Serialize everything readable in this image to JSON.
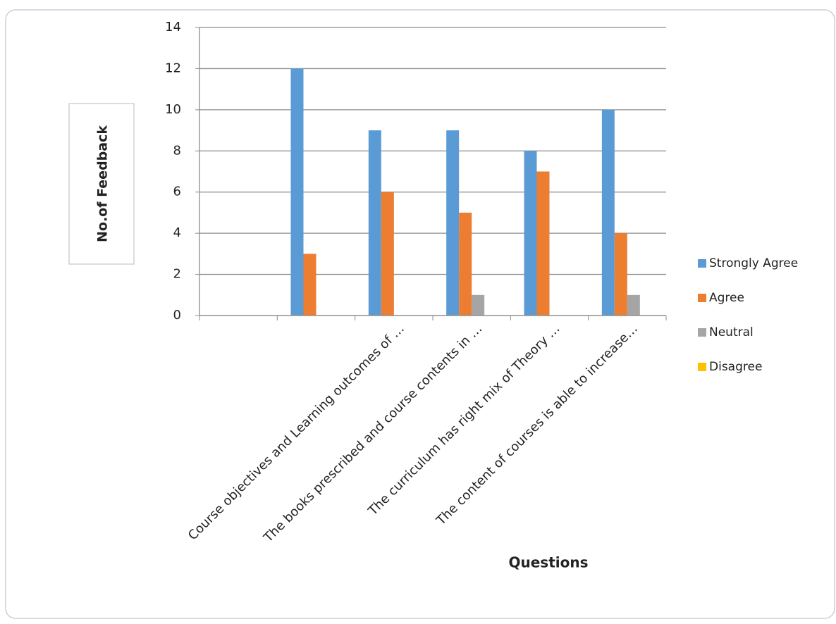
{
  "chart_data": {
    "type": "bar",
    "x_label": "Questions",
    "y_label": "No.of Feedback",
    "categories": [
      null,
      null,
      "Course objectives and Learning outcomes of …",
      "The books prescribed and course contents in …",
      "The curriculum has right mix of Theory …",
      "The content of courses is able to increase…"
    ],
    "series": [
      {
        "name": "Strongly Agree",
        "color": "#5b9bd5",
        "values": [
          null,
          12,
          9,
          9,
          8,
          10
        ]
      },
      {
        "name": "Agree",
        "color": "#ed7d31",
        "values": [
          null,
          3,
          6,
          5,
          7,
          4
        ]
      },
      {
        "name": "Neutral",
        "color": "#a5a5a5",
        "values": [
          null,
          0,
          0,
          1,
          0,
          1
        ]
      },
      {
        "name": "Disagree",
        "color": "#ffc000",
        "values": [
          null,
          0,
          0,
          0,
          0,
          0
        ]
      }
    ],
    "ylim": [
      0,
      14
    ],
    "yticks": [
      0,
      2,
      4,
      6,
      8,
      10,
      12,
      14
    ],
    "grid": true,
    "legend": "right"
  }
}
